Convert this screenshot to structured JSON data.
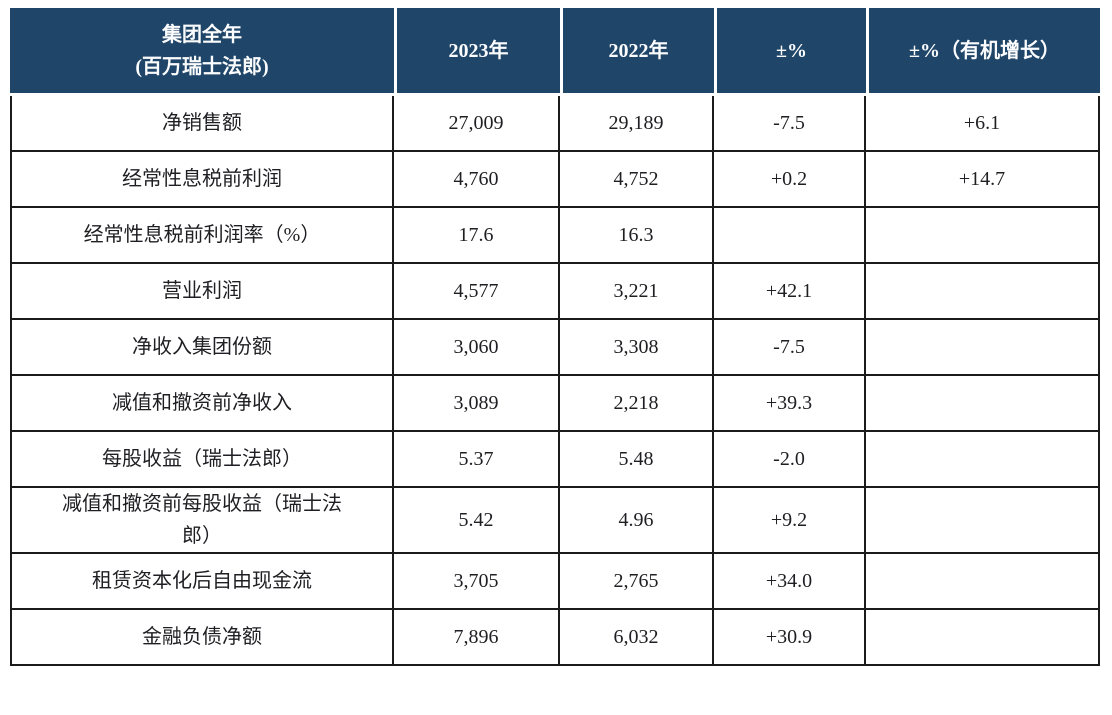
{
  "colors": {
    "header_bg": "#1f4568",
    "header_text": "#fbfcfd",
    "grid_line": "#1b1b1b",
    "body_text": "#1f1f23",
    "page_bg": "#ffffff"
  },
  "table": {
    "header": [
      "集团全年\n(百万瑞士法郎)",
      "2023年",
      "2022年",
      "±%",
      "±%（有机增长）"
    ],
    "rows": [
      {
        "cells": [
          "净销售额",
          "27,009",
          "29,189",
          "-7.5",
          "+6.1"
        ]
      },
      {
        "cells": [
          "经常性息税前利润",
          "4,760",
          "4,752",
          "+0.2",
          "+14.7"
        ]
      },
      {
        "cells": [
          "经常性息税前利润率（%）",
          "17.6",
          "16.3",
          "",
          ""
        ]
      },
      {
        "cells": [
          "营业利润",
          "4,577",
          "3,221",
          "+42.1",
          ""
        ]
      },
      {
        "cells": [
          "净收入集团份额",
          "3,060",
          "3,308",
          "-7.5",
          ""
        ]
      },
      {
        "cells": [
          "减值和撤资前净收入",
          "3,089",
          "2,218",
          "+39.3",
          ""
        ]
      },
      {
        "cells": [
          "每股收益（瑞士法郎）",
          "5.37",
          "5.48",
          "-2.0",
          ""
        ]
      },
      {
        "cells": [
          "减值和撤资前每股收益（瑞士法\n郎）",
          "5.42",
          "4.96",
          "+9.2",
          ""
        ]
      },
      {
        "cells": [
          "租赁资本化后自由现金流",
          "3,705",
          "2,765",
          "+34.0",
          ""
        ]
      },
      {
        "cells": [
          "金融负债净额",
          "7,896",
          "6,032",
          "+30.9",
          ""
        ]
      }
    ]
  }
}
